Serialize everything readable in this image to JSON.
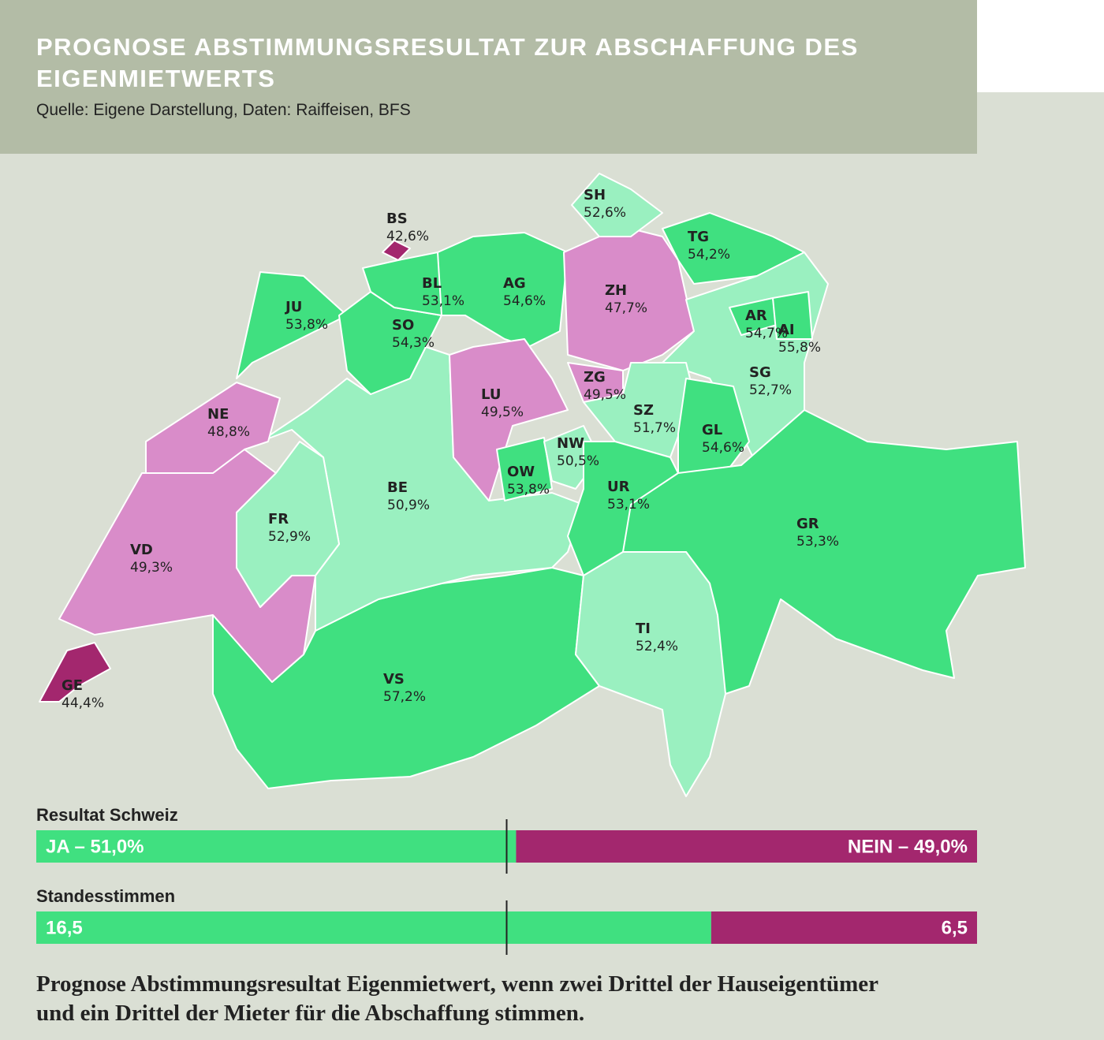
{
  "header": {
    "title": "PROGNOSE ABSTIMMUNGSRESULTAT ZUR ABSCHAFFUNG DES EIGENMIETWERTS",
    "source": "Quelle: Eigene Darstellung, Daten: Raiffeisen, BFS"
  },
  "map": {
    "type": "choropleth",
    "regions": [
      {
        "code": "VS",
        "value": 57.2,
        "value_label": "57,2%",
        "color": "#40e080"
      },
      {
        "code": "BE",
        "value": 50.9,
        "value_label": "50,9%",
        "color": "#9af0c0"
      },
      {
        "code": "VD",
        "value": 49.3,
        "value_label": "49,3%",
        "color": "#d98cc9"
      },
      {
        "code": "FR",
        "value": 52.9,
        "value_label": "52,9%",
        "color": "#9af0c0"
      },
      {
        "code": "NE",
        "value": 48.8,
        "value_label": "48,8%",
        "color": "#d98cc9"
      },
      {
        "code": "GE",
        "value": 44.4,
        "value_label": "44,4%",
        "color": "#a3276e"
      },
      {
        "code": "JU",
        "value": 53.8,
        "value_label": "53,8%",
        "color": "#40e080"
      },
      {
        "code": "SO",
        "value": 54.3,
        "value_label": "54,3%",
        "color": "#40e080"
      },
      {
        "code": "BL",
        "value": 53.1,
        "value_label": "53,1%",
        "color": "#40e080"
      },
      {
        "code": "BS",
        "value": 42.6,
        "value_label": "42,6%",
        "color": "#a3276e"
      },
      {
        "code": "AG",
        "value": 54.6,
        "value_label": "54,6%",
        "color": "#40e080"
      },
      {
        "code": "LU",
        "value": 49.5,
        "value_label": "49,5%",
        "color": "#d98cc9"
      },
      {
        "code": "ZH",
        "value": 47.7,
        "value_label": "47,7%",
        "color": "#d98cc9"
      },
      {
        "code": "SH",
        "value": 52.6,
        "value_label": "52,6%",
        "color": "#9af0c0"
      },
      {
        "code": "TG",
        "value": 54.2,
        "value_label": "54,2%",
        "color": "#40e080"
      },
      {
        "code": "SG",
        "value": 52.7,
        "value_label": "52,7%",
        "color": "#9af0c0"
      },
      {
        "code": "AR",
        "value": 54.7,
        "value_label": "54,7%",
        "color": "#40e080"
      },
      {
        "code": "AI",
        "value": 55.8,
        "value_label": "55,8%",
        "color": "#40e080"
      },
      {
        "code": "ZG",
        "value": 49.5,
        "value_label": "49,5%",
        "color": "#d98cc9"
      },
      {
        "code": "SZ",
        "value": 51.7,
        "value_label": "51,7%",
        "color": "#9af0c0"
      },
      {
        "code": "GL",
        "value": 54.6,
        "value_label": "54,6%",
        "color": "#40e080"
      },
      {
        "code": "OW",
        "value": 53.8,
        "value_label": "53,8%",
        "color": "#40e080"
      },
      {
        "code": "NW",
        "value": 50.5,
        "value_label": "50,5%",
        "color": "#9af0c0"
      },
      {
        "code": "UR",
        "value": 53.1,
        "value_label": "53,1%",
        "color": "#40e080"
      },
      {
        "code": "GR",
        "value": 53.3,
        "value_label": "53,3%",
        "color": "#40e080"
      },
      {
        "code": "TI",
        "value": 52.4,
        "value_label": "52,4%",
        "color": "#9af0c0"
      }
    ]
  },
  "results": [
    {
      "label": "Resultat Schweiz",
      "segments": [
        {
          "value": 51.0,
          "value_label": "JA – 51,0%",
          "color": "#40e080"
        },
        {
          "value": 49.0,
          "value_label": "NEIN – 49,0%",
          "color": "#a3276e"
        }
      ]
    },
    {
      "label": "Standesstimmen",
      "segments": [
        {
          "value": 16.5,
          "value_label": "16,5",
          "color": "#40e080"
        },
        {
          "value": 6.5,
          "value_label": "6,5",
          "color": "#a3276e"
        }
      ]
    }
  ],
  "caption": "Prognose Abstimmungsresultat Eigenmietwert, wenn zwei Drittel der Hauseigentümer und ein Drittel der Mieter für die Abschaffung stimmen."
}
